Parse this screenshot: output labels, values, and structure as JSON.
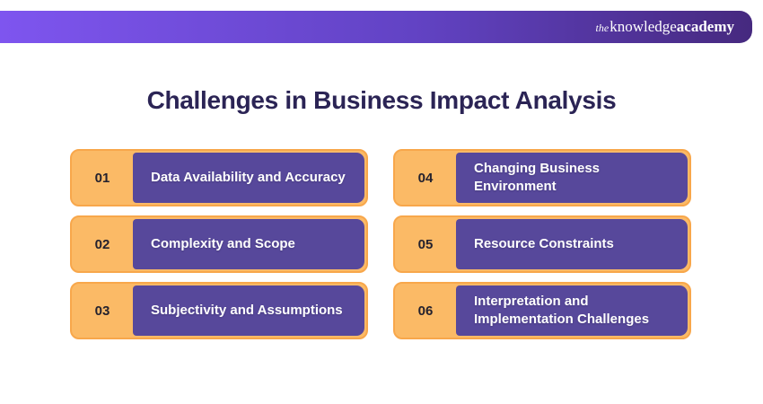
{
  "header": {
    "logo_the": "the",
    "logo_knowledge": "knowledge",
    "logo_academy": "academy"
  },
  "title": "Challenges in Business Impact Analysis",
  "cards": [
    {
      "number": "01",
      "label": "Data Availability and Accuracy"
    },
    {
      "number": "02",
      "label": "Complexity and Scope"
    },
    {
      "number": "03",
      "label": "Subjectivity and Assumptions"
    },
    {
      "number": "04",
      "label": "Changing Business Environment"
    },
    {
      "number": "05",
      "label": "Resource Constraints"
    },
    {
      "number": "06",
      "label": "Interpretation and Implementation Challenges"
    }
  ],
  "colors": {
    "header_gradient_start": "#7e55ef",
    "header_gradient_end": "#46297f",
    "title_text": "#2b2455",
    "card_orange_fill": "#fbba66",
    "card_orange_border": "#f8a74b",
    "card_purple_panel": "#57489b",
    "card_number_text": "#25222e",
    "card_label_text": "#ffffff",
    "page_background": "#ffffff"
  }
}
